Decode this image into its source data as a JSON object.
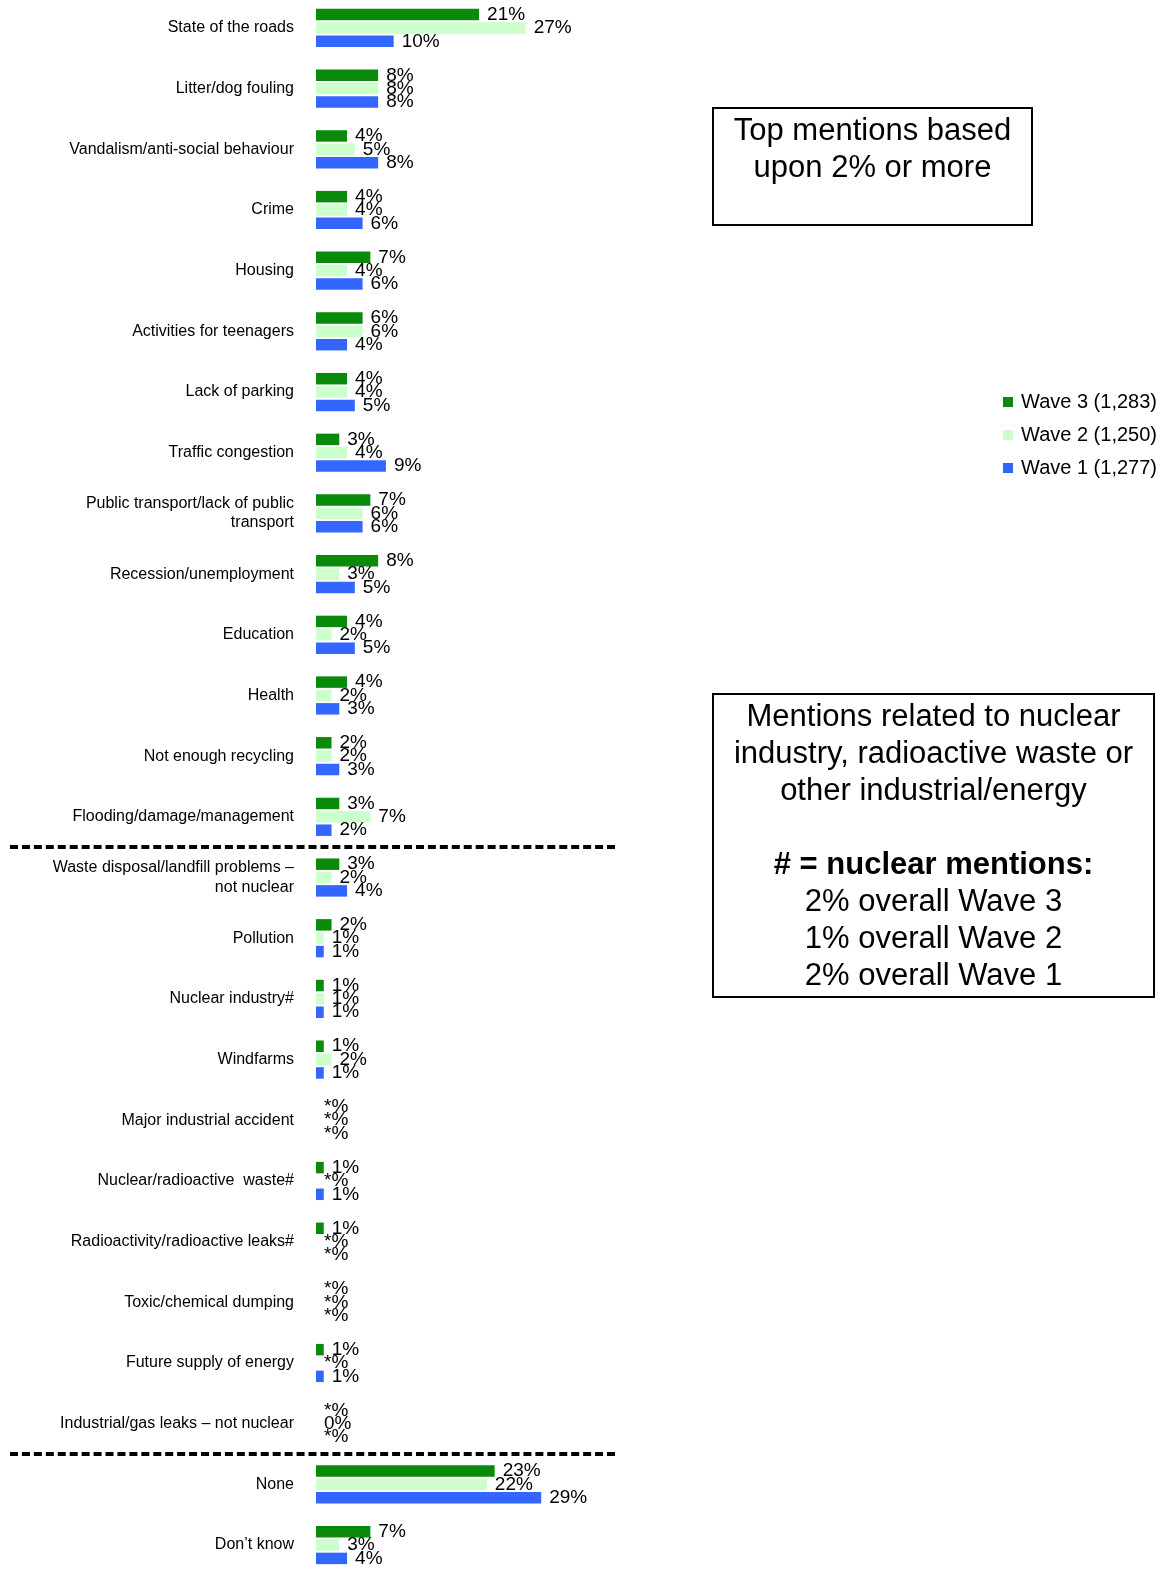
{
  "chart_data": {
    "type": "bar",
    "orientation": "horizontal",
    "legend": "right",
    "tick_labels": "y",
    "categories": [
      "State of the roads",
      "Litter/dog fouling",
      "Vandalism/anti-social behaviour",
      "Crime",
      "Housing",
      "Activities for teenagers",
      "Lack of parking",
      "Traffic congestion",
      "Public transport/lack of public transport",
      "Recession/unemployment",
      "Education",
      "Health",
      "Not enough recycling",
      "Flooding/damage/management",
      "Waste disposal/landfill problems – not nuclear",
      "Pollution",
      "Nuclear industry#",
      "Windfarms",
      "Major industrial accident",
      "Nuclear/radioactive  waste#",
      "Radioactivity/radioactive leaks#",
      "Toxic/chemical dumping",
      "Future supply of energy",
      "Industrial/gas leaks – not nuclear",
      "None",
      "Don’t know"
    ],
    "series": [
      {
        "name": "Wave 3 (1,283)",
        "color": "#0a8a0a",
        "values": [
          21,
          8,
          4,
          4,
          7,
          6,
          4,
          3,
          7,
          8,
          4,
          4,
          2,
          3,
          3,
          2,
          1,
          1,
          0,
          1,
          1,
          0,
          1,
          0,
          23,
          7
        ],
        "value_labels": [
          "21%",
          "8%",
          "4%",
          "4%",
          "7%",
          "6%",
          "4%",
          "3%",
          "7%",
          "8%",
          "4%",
          "4%",
          "2%",
          "3%",
          "3%",
          "2%",
          "1%",
          "1%",
          "*%",
          "1%",
          "1%",
          "*%",
          "1%",
          "*%",
          "23%",
          "7%"
        ]
      },
      {
        "name": "Wave 2 (1,250)",
        "color": "#ccffcc",
        "values": [
          27,
          8,
          5,
          4,
          4,
          6,
          4,
          4,
          6,
          3,
          2,
          2,
          2,
          7,
          2,
          1,
          1,
          2,
          0,
          0,
          0,
          0,
          0,
          0,
          22,
          3
        ],
        "value_labels": [
          "27%",
          "8%",
          "5%",
          "4%",
          "4%",
          "6%",
          "4%",
          "4%",
          "6%",
          "3%",
          "2%",
          "2%",
          "2%",
          "7%",
          "2%",
          "1%",
          "1%",
          "2%",
          "*%",
          "*%",
          "*%",
          "*%",
          "*%",
          "0%",
          "22%",
          "3%"
        ]
      },
      {
        "name": "Wave 1 (1,277)",
        "color": "#3366ff",
        "values": [
          10,
          8,
          8,
          6,
          6,
          4,
          5,
          9,
          6,
          5,
          5,
          3,
          3,
          2,
          4,
          1,
          1,
          1,
          0,
          1,
          0,
          0,
          1,
          0,
          29,
          4
        ],
        "value_labels": [
          "10%",
          "8%",
          "8%",
          "6%",
          "6%",
          "4%",
          "5%",
          "9%",
          "6%",
          "5%",
          "5%",
          "3%",
          "3%",
          "2%",
          "4%",
          "1%",
          "1%",
          "1%",
          "*%",
          "1%",
          "*%",
          "*%",
          "1%",
          "*%",
          "29%",
          "4%"
        ]
      }
    ],
    "annotations": [
      "Top mentions based upon 2% or more",
      "Mentions related to nuclear industry, radioactive waste or other industrial/energy",
      "# = nuclear mentions:",
      "2% overall Wave 3",
      "1% overall Wave 2",
      "2% overall Wave 1"
    ]
  }
}
